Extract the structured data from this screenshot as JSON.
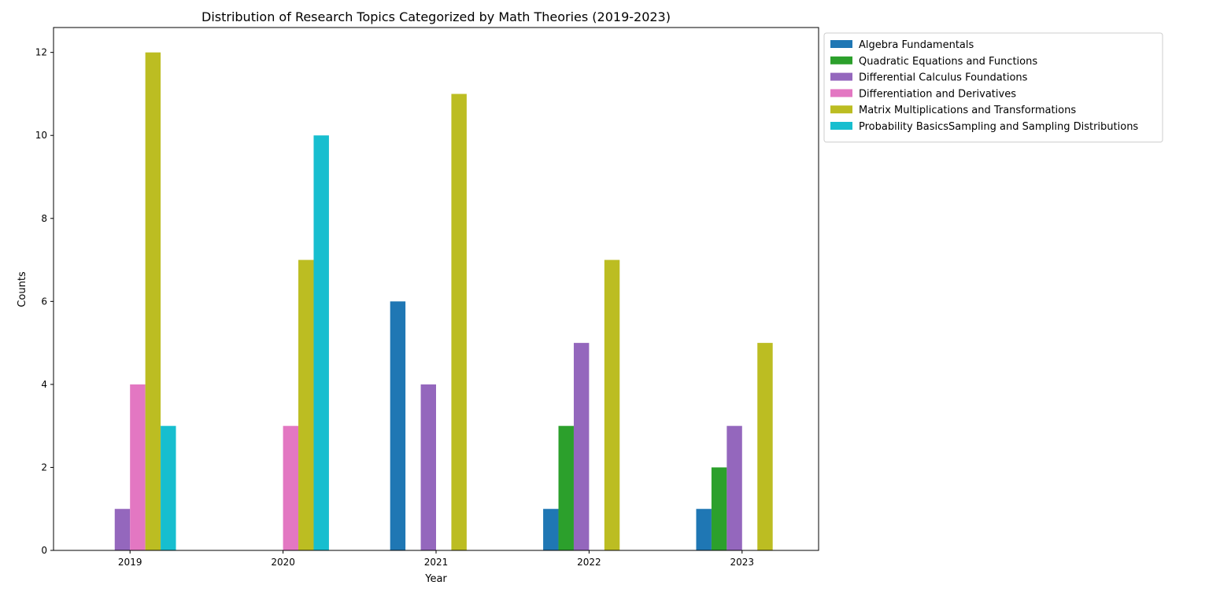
{
  "chart_data": {
    "type": "bar",
    "title": "Distribution of Research Topics Categorized by Math Theories (2019-2023)",
    "xlabel": "Year",
    "ylabel": "Counts",
    "categories": [
      "2019",
      "2020",
      "2021",
      "2022",
      "2023"
    ],
    "ylim": [
      0,
      12.6
    ],
    "yticks": [
      0,
      2,
      4,
      6,
      8,
      10,
      12
    ],
    "grid": false,
    "legend_position": "outside-top-right",
    "series": [
      {
        "name": "Algebra Fundamentals",
        "color": "#1f77b4",
        "values": [
          0,
          0,
          6,
          1,
          1
        ]
      },
      {
        "name": "Quadratic Equations and Functions",
        "color": "#2ca02c",
        "values": [
          0,
          0,
          0,
          3,
          2
        ]
      },
      {
        "name": "Differential Calculus Foundations",
        "color": "#9467bd",
        "values": [
          1,
          0,
          4,
          5,
          3
        ]
      },
      {
        "name": "Differentiation and Derivatives",
        "color": "#e377c2",
        "values": [
          4,
          3,
          0,
          0,
          0
        ]
      },
      {
        "name": "Matrix Multiplications and Transformations",
        "color": "#bcbd22",
        "values": [
          12,
          7,
          11,
          7,
          5
        ]
      },
      {
        "name": "Probability BasicsSampling and Sampling Distributions",
        "color": "#17becf",
        "values": [
          3,
          10,
          0,
          0,
          0
        ]
      }
    ]
  }
}
